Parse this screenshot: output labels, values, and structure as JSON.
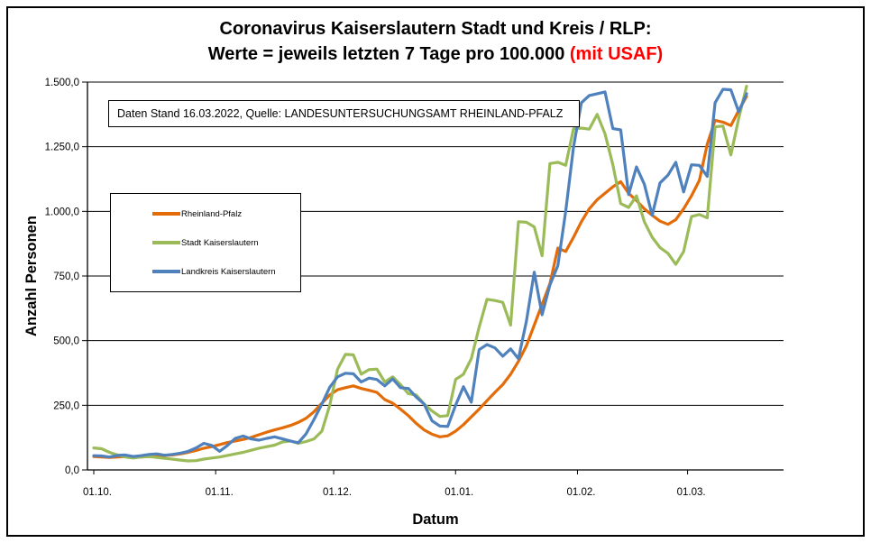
{
  "title": {
    "line1": "Coronavirus Kaiserslautern Stadt und Kreis / RLP:",
    "line2_black": "Werte = jeweils letzten 7 Tage pro 100.000 ",
    "line2_red": "(mit USAF)",
    "accent_color": "#FF0000"
  },
  "note_box": {
    "text": "Daten Stand 16.03.2022, Quelle: LANDESUNTERSUCHUNGSAMT RHEINLAND-PFALZ"
  },
  "legend": {
    "items": [
      {
        "label": "Rheinland-Pfalz",
        "color": "#E36C09"
      },
      {
        "label": "Stadt Kaiserslautern",
        "color": "#9BBB59"
      },
      {
        "label": "Landkreis Kaiserslautern",
        "color": "#4F81BD"
      }
    ]
  },
  "axes": {
    "y_title": "Anzahl Personen",
    "x_title": "Datum",
    "y_ticks": [
      {
        "label": "0,0",
        "value": 0
      },
      {
        "label": "250,0",
        "value": 250
      },
      {
        "label": "500,0",
        "value": 500
      },
      {
        "label": "750,0",
        "value": 750
      },
      {
        "label": "1.000,0",
        "value": 1000
      },
      {
        "label": "1.250,0",
        "value": 1250
      },
      {
        "label": "1.500,0",
        "value": 1500
      }
    ],
    "x_ticks": [
      {
        "label": "01.10.",
        "day": 0
      },
      {
        "label": "01.11.",
        "day": 31
      },
      {
        "label": "01.12.",
        "day": 61
      },
      {
        "label": "01.01.",
        "day": 92
      },
      {
        "label": "01.02.",
        "day": 123
      },
      {
        "label": "01.03.",
        "day": 151
      }
    ]
  },
  "chart_data": {
    "type": "line",
    "title": "Coronavirus Kaiserslautern Stadt und Kreis / RLP: Werte = jeweils letzten 7 Tage pro 100.000 (mit USAF)",
    "xlabel": "Datum",
    "ylabel": "Anzahl Personen",
    "ylim": [
      0,
      1500
    ],
    "grid": "horizontal",
    "legend_position": "inside-left",
    "x_unit": "Tage ab 01.10.2021 (bis 16.03.2022)",
    "x": [
      0,
      2,
      4,
      6,
      8,
      10,
      12,
      14,
      16,
      18,
      20,
      22,
      24,
      26,
      28,
      30,
      32,
      34,
      36,
      38,
      40,
      42,
      44,
      46,
      48,
      50,
      52,
      54,
      56,
      58,
      60,
      62,
      64,
      66,
      68,
      70,
      72,
      74,
      76,
      78,
      80,
      82,
      84,
      86,
      88,
      90,
      92,
      94,
      96,
      98,
      100,
      102,
      104,
      106,
      108,
      110,
      112,
      114,
      116,
      118,
      120,
      122,
      124,
      126,
      128,
      130,
      132,
      134,
      136,
      138,
      140,
      142,
      144,
      146,
      148,
      150,
      152,
      154,
      156,
      158,
      160,
      162,
      164,
      166
    ],
    "series": [
      {
        "name": "Rheinland-Pfalz",
        "color": "#E36C09",
        "values": [
          52,
          50,
          48,
          50,
          52,
          48,
          50,
          52,
          54,
          56,
          58,
          62,
          68,
          75,
          84,
          90,
          98,
          106,
          112,
          118,
          126,
          136,
          146,
          155,
          163,
          172,
          184,
          200,
          225,
          258,
          290,
          310,
          318,
          325,
          315,
          308,
          300,
          272,
          258,
          235,
          210,
          180,
          155,
          138,
          128,
          132,
          150,
          175,
          205,
          235,
          268,
          300,
          330,
          370,
          420,
          480,
          560,
          640,
          720,
          858,
          845,
          900,
          960,
          1010,
          1045,
          1070,
          1095,
          1115,
          1070,
          1042,
          1010,
          985,
          962,
          950,
          968,
          1010,
          1060,
          1120,
          1260,
          1352,
          1345,
          1332,
          1390,
          1445
        ]
      },
      {
        "name": "Stadt Kaiserslautern",
        "color": "#9BBB59",
        "values": [
          85,
          82,
          68,
          58,
          50,
          46,
          50,
          52,
          48,
          45,
          42,
          38,
          35,
          36,
          42,
          46,
          50,
          56,
          62,
          68,
          76,
          84,
          90,
          96,
          108,
          112,
          103,
          110,
          120,
          150,
          250,
          390,
          447,
          445,
          370,
          388,
          390,
          340,
          360,
          330,
          295,
          290,
          255,
          228,
          207,
          210,
          350,
          370,
          430,
          552,
          660,
          655,
          648,
          560,
          960,
          958,
          940,
          828,
          1185,
          1190,
          1178,
          1320,
          1322,
          1318,
          1375,
          1300,
          1180,
          1030,
          1015,
          1060,
          960,
          900,
          860,
          838,
          795,
          845,
          980,
          988,
          975,
          1327,
          1330,
          1218,
          1360,
          1484
        ]
      },
      {
        "name": "Landkreis Kaiserslautern",
        "color": "#4F81BD",
        "values": [
          55,
          54,
          50,
          56,
          58,
          52,
          55,
          60,
          62,
          57,
          60,
          65,
          72,
          85,
          103,
          95,
          72,
          95,
          122,
          131,
          120,
          115,
          122,
          128,
          120,
          112,
          105,
          140,
          195,
          255,
          320,
          360,
          374,
          372,
          340,
          355,
          350,
          325,
          352,
          318,
          315,
          282,
          255,
          190,
          170,
          168,
          250,
          322,
          262,
          465,
          485,
          472,
          440,
          468,
          430,
          575,
          765,
          600,
          715,
          790,
          1000,
          1250,
          1420,
          1448,
          1455,
          1462,
          1320,
          1315,
          1065,
          1172,
          1105,
          985,
          1110,
          1140,
          1190,
          1075,
          1180,
          1178,
          1135,
          1420,
          1472,
          1470,
          1385,
          1455
        ]
      }
    ]
  }
}
